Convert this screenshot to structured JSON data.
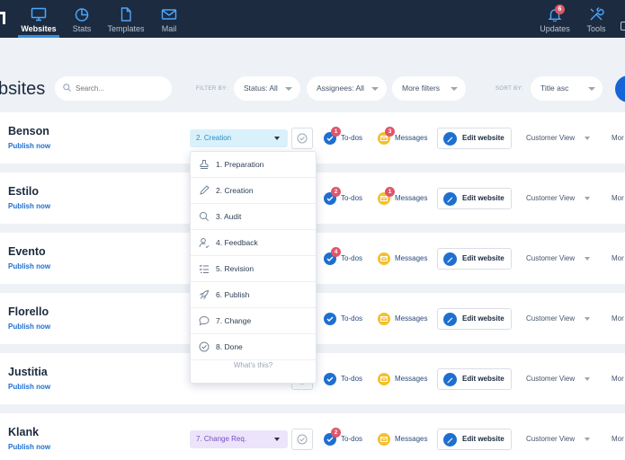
{
  "nav": {
    "items": [
      {
        "label": "Websites",
        "icon": "monitor-icon",
        "active": true
      },
      {
        "label": "Stats",
        "icon": "pie-chart-icon"
      },
      {
        "label": "Templates",
        "icon": "document-icon"
      },
      {
        "label": "Mail",
        "icon": "envelope-icon"
      }
    ],
    "right": [
      {
        "label": "Updates",
        "icon": "bell-icon",
        "badge": "6"
      },
      {
        "label": "Tools",
        "icon": "tools-icon"
      }
    ]
  },
  "toolbar": {
    "title": "bsites",
    "search_placeholder": "Search...",
    "filter_by": "FILTER BY:",
    "status": "Status: All",
    "assignees": "Assignees: All",
    "more_filters": "More filters",
    "sort_by": "SORT BY:",
    "sort_value": "Title asc"
  },
  "rows": [
    {
      "name": "Benson",
      "publish": "Publish now",
      "stage": "2. Creation",
      "todos": "To-dos",
      "todo_count": "1",
      "messages": "Messages",
      "msg_count": "3",
      "edit": "Edit website",
      "view": "Customer View",
      "more": "Mor"
    },
    {
      "name": "Estilo",
      "publish": "Publish now",
      "todos": "To-dos",
      "todo_count": "2",
      "messages": "Messages",
      "msg_count": "1",
      "edit": "Edit website",
      "view": "Customer View",
      "more": "Mor"
    },
    {
      "name": "Evento",
      "publish": "Publish now",
      "todos": "To-dos",
      "todo_count": "4",
      "messages": "Messages",
      "msg_count": "",
      "edit": "Edit website",
      "view": "Customer View",
      "more": "Mor"
    },
    {
      "name": "Florello",
      "publish": "Publish now",
      "todos": "To-dos",
      "todo_count": "",
      "messages": "Messages",
      "msg_count": "",
      "edit": "Edit website",
      "view": "Customer View",
      "more": "Mor"
    },
    {
      "name": "Justitia",
      "publish": "Publish now",
      "todos": "To-dos",
      "todo_count": "",
      "messages": "Messages",
      "msg_count": "",
      "edit": "Edit website",
      "view": "Customer View",
      "more": "Mor"
    },
    {
      "name": "Klank",
      "publish": "Publish now",
      "stage": "7. Change Req.",
      "todos": "To-dos",
      "todo_count": "2",
      "messages": "Messages",
      "msg_count": "",
      "edit": "Edit website",
      "view": "Customer View",
      "more": "Mor"
    }
  ],
  "dropdown": {
    "items": [
      {
        "label": "1. Preparation",
        "icon": "stamp-icon"
      },
      {
        "label": "2. Creation",
        "icon": "pencil-icon"
      },
      {
        "label": "3. Audit",
        "icon": "magnifier-icon"
      },
      {
        "label": "4. Feedback",
        "icon": "user-feedback-icon"
      },
      {
        "label": "5. Revision",
        "icon": "checklist-icon"
      },
      {
        "label": "6. Publish",
        "icon": "rocket-icon"
      },
      {
        "label": "7. Change",
        "icon": "speech-bubble-icon"
      },
      {
        "label": "8. Done",
        "icon": "check-circle-icon"
      }
    ],
    "footer": "What's this?"
  },
  "colors": {
    "nav_bg": "#1c2b3f",
    "accent": "#1f6fd0",
    "badge": "#e0566a",
    "msg": "#f6c02c"
  }
}
